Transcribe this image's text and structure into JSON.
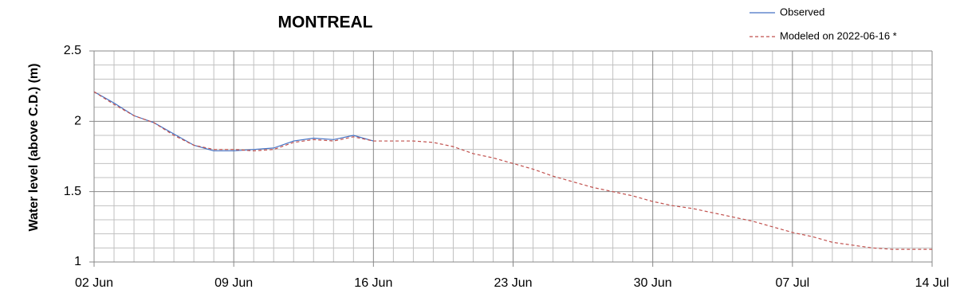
{
  "chart_data": {
    "type": "line",
    "title": "MONTREAL",
    "ylabel": "Water level (above C.D.) (m)",
    "x": [
      0,
      1,
      2,
      3,
      4,
      5,
      6,
      7,
      8,
      9,
      10,
      11,
      12,
      13,
      14,
      15,
      16,
      17,
      18,
      19,
      20,
      21,
      22,
      23,
      24,
      25,
      26,
      27,
      28,
      29,
      30,
      31,
      32,
      33,
      34,
      35,
      36,
      37,
      38,
      39,
      40,
      41,
      42
    ],
    "series": [
      {
        "name": "Observed",
        "color": "#4472c4",
        "dash": false,
        "values": [
          2.21,
          2.13,
          2.04,
          1.99,
          1.91,
          1.83,
          1.79,
          1.79,
          1.8,
          1.81,
          1.86,
          1.88,
          1.87,
          1.9,
          1.86,
          null,
          null,
          null,
          null,
          null,
          null,
          null,
          null,
          null,
          null,
          null,
          null,
          null,
          null,
          null,
          null,
          null,
          null,
          null,
          null,
          null,
          null,
          null,
          null,
          null,
          null,
          null,
          null
        ]
      },
      {
        "name": "Modeled on 2022-06-16 *",
        "color": "#c0504d",
        "dash": true,
        "values": [
          2.21,
          2.12,
          2.04,
          1.99,
          1.9,
          1.83,
          1.8,
          1.8,
          1.79,
          1.8,
          1.85,
          1.87,
          1.86,
          1.89,
          1.86,
          1.86,
          1.86,
          1.85,
          1.82,
          1.77,
          1.74,
          1.7,
          1.66,
          1.61,
          1.57,
          1.53,
          1.5,
          1.47,
          1.43,
          1.4,
          1.38,
          1.35,
          1.32,
          1.29,
          1.25,
          1.21,
          1.18,
          1.14,
          1.12,
          1.1,
          1.09,
          1.09,
          1.09
        ]
      }
    ],
    "xlim": [
      0,
      42
    ],
    "xticks": [
      {
        "value": 0,
        "label": "02 Jun"
      },
      {
        "value": 7,
        "label": "09 Jun"
      },
      {
        "value": 14,
        "label": "16 Jun"
      },
      {
        "value": 21,
        "label": "23 Jun"
      },
      {
        "value": 28,
        "label": "30 Jun"
      },
      {
        "value": 35,
        "label": "07 Jul"
      },
      {
        "value": 42,
        "label": "14 Jul"
      }
    ],
    "x_minor_ticks": [
      1,
      2,
      3,
      4,
      5,
      6,
      8,
      9,
      10,
      11,
      12,
      13,
      15,
      16,
      17,
      18,
      19,
      20,
      22,
      23,
      24,
      25,
      26,
      27,
      29,
      30,
      31,
      32,
      33,
      34,
      36,
      37,
      38,
      39,
      40,
      41
    ],
    "ylim": [
      1,
      2.5
    ],
    "yticks": [
      1,
      1.5,
      2,
      2.5
    ],
    "y_minor_ticks": [
      1.1,
      1.2,
      1.3,
      1.4,
      1.6,
      1.7,
      1.8,
      1.9,
      2.1,
      2.2,
      2.3,
      2.4
    ],
    "grid": true,
    "legend": "upper right"
  }
}
